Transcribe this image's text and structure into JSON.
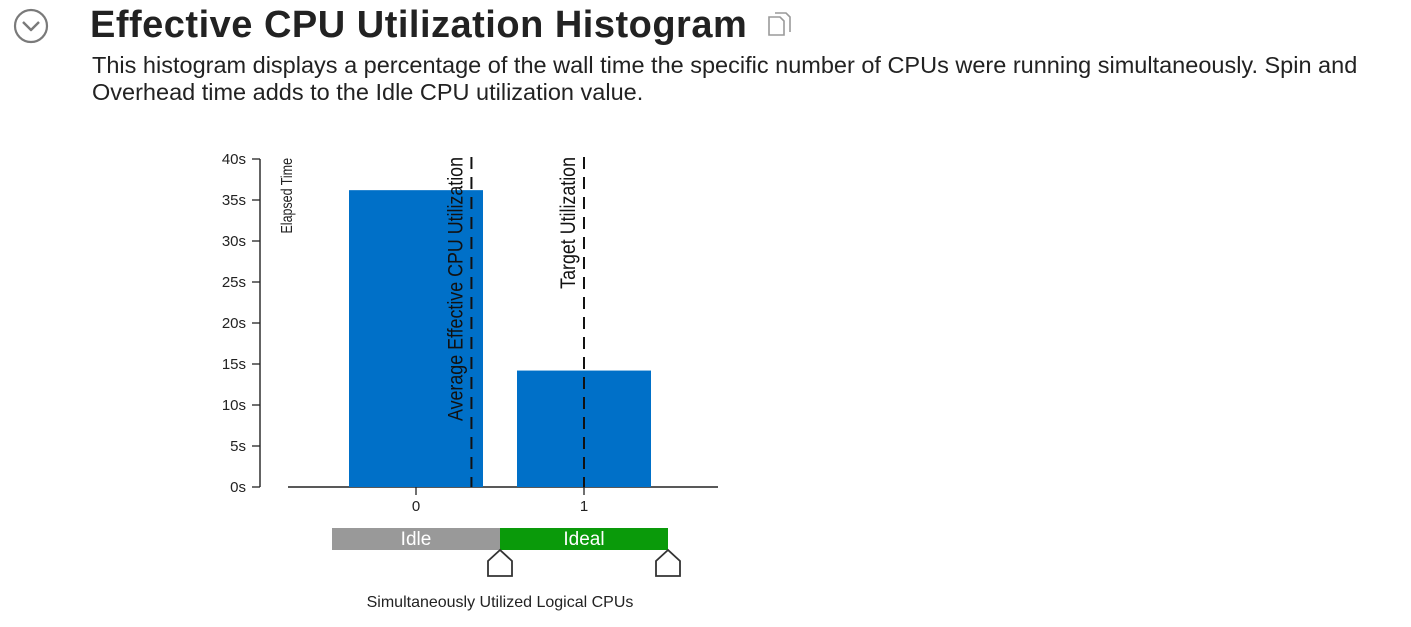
{
  "header": {
    "title": "Effective CPU Utilization Histogram",
    "collapse_icon": "chevron-down-circle-icon",
    "copy_icon": "copy-icon"
  },
  "description": "This histogram displays a percentage of the wall time the specific number of CPUs were running simultaneously. Spin and Overhead time adds to the Idle CPU utilization value.",
  "chart_data": {
    "type": "bar",
    "categories": [
      "0",
      "1"
    ],
    "values": [
      36.2,
      14.2
    ],
    "bar_color": "#0070c8",
    "ylabel": "Elapsed Time",
    "xlabel": "Simultaneously Utilized Logical CPUs",
    "ylim": [
      0,
      40
    ],
    "yticks": [
      {
        "value": 0,
        "label": "0s"
      },
      {
        "value": 5,
        "label": "5s"
      },
      {
        "value": 10,
        "label": "10s"
      },
      {
        "value": 15,
        "label": "15s"
      },
      {
        "value": 20,
        "label": "20s"
      },
      {
        "value": 25,
        "label": "25s"
      },
      {
        "value": 30,
        "label": "30s"
      },
      {
        "value": 35,
        "label": "35s"
      },
      {
        "value": 40,
        "label": "40s"
      }
    ],
    "grid": false,
    "markers": [
      {
        "name": "Average Effective CPU Utilization",
        "x": 0.33,
        "style": "dashed"
      },
      {
        "name": "Target Utilization",
        "x": 1.0,
        "style": "dashed"
      }
    ],
    "ranges": [
      {
        "label": "Idle",
        "from": -0.5,
        "to": 0.5,
        "color": "#999999"
      },
      {
        "label": "Ideal",
        "from": 0.5,
        "to": 1.5,
        "color": "#0a9a0a"
      }
    ],
    "slider_handles": [
      {
        "name": "idle-ideal-threshold",
        "x": 0.5
      },
      {
        "name": "ideal-max-threshold",
        "x": 1.5
      }
    ]
  }
}
